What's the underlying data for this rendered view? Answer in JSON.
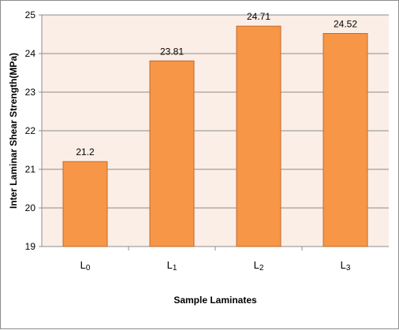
{
  "colors": {
    "plot_background": "#fbeee6",
    "bar_fill": "#f79646",
    "bar_stroke": "#c0692c",
    "grid": "#8c8c8c"
  },
  "chart_data": {
    "type": "bar",
    "categories": [
      "L0",
      "L1",
      "L2",
      "L3"
    ],
    "category_display": [
      {
        "main": "L",
        "sub": "0"
      },
      {
        "main": "L",
        "sub": "1"
      },
      {
        "main": "L",
        "sub": "2"
      },
      {
        "main": "L",
        "sub": "3"
      }
    ],
    "values": [
      21.2,
      23.81,
      24.71,
      24.52
    ],
    "data_labels": [
      "21.2",
      "23.81",
      "24.71",
      "24.52"
    ],
    "xlabel": "Sample Laminates",
    "ylabel": "Inter Laminar Shear Strength(MPa)",
    "ylim": [
      19,
      25
    ],
    "yticks": [
      19,
      20,
      21,
      22,
      23,
      24,
      25
    ],
    "grid": true,
    "legend": "none"
  }
}
